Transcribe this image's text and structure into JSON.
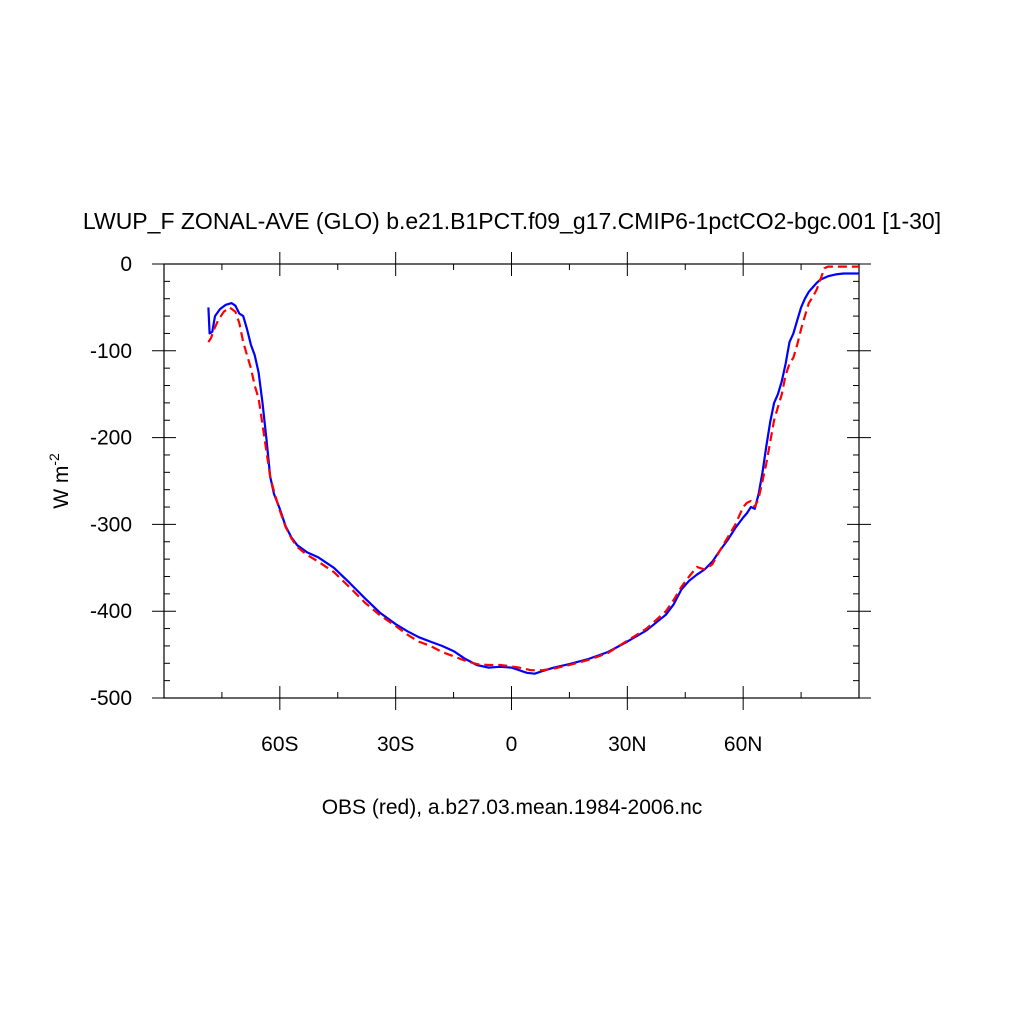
{
  "chart_data": {
    "type": "line",
    "title": "LWUP_F ZONAL-AVE (GLO) b.e21.B1PCT.f09_g17.CMIP6-1pctCO2-bgc.001 [1-30]",
    "xlabel": "OBS (red), a.b27.03.mean.1984-2006.nc",
    "ylabel": "W m",
    "ylabel_sup": "-2",
    "xlim": [
      -90,
      90
    ],
    "ylim": [
      -500,
      0
    ],
    "x_ticks": [
      {
        "value": -60,
        "label": "60S"
      },
      {
        "value": -30,
        "label": "30S"
      },
      {
        "value": 0,
        "label": "0"
      },
      {
        "value": 30,
        "label": "30N"
      },
      {
        "value": 60,
        "label": "60N"
      }
    ],
    "y_ticks": [
      {
        "value": 0,
        "label": "0"
      },
      {
        "value": -100,
        "label": "-100"
      },
      {
        "value": -200,
        "label": "-200"
      },
      {
        "value": -300,
        "label": "-300"
      },
      {
        "value": -400,
        "label": "-400"
      },
      {
        "value": -500,
        "label": "-500"
      }
    ],
    "grid": false,
    "series": [
      {
        "color": "#0000ff",
        "dash": "solid",
        "points": [
          [
            -78.5,
            -50
          ],
          [
            -78.2,
            -80
          ],
          [
            -77.5,
            -78
          ],
          [
            -76.8,
            -60
          ],
          [
            -75.5,
            -52
          ],
          [
            -74,
            -47
          ],
          [
            -72.5,
            -45
          ],
          [
            -71.5,
            -48
          ],
          [
            -70.5,
            -57
          ],
          [
            -69.5,
            -60
          ],
          [
            -68.5,
            -75
          ],
          [
            -67.5,
            -93
          ],
          [
            -66.5,
            -105
          ],
          [
            -65.5,
            -125
          ],
          [
            -64.5,
            -160
          ],
          [
            -63.5,
            -200
          ],
          [
            -62.5,
            -245
          ],
          [
            -61.5,
            -265
          ],
          [
            -60,
            -282
          ],
          [
            -58.5,
            -302
          ],
          [
            -57,
            -315
          ],
          [
            -55.5,
            -324
          ],
          [
            -53,
            -332
          ],
          [
            -50,
            -338
          ],
          [
            -46,
            -350
          ],
          [
            -42,
            -367
          ],
          [
            -38,
            -385
          ],
          [
            -34,
            -402
          ],
          [
            -30,
            -415
          ],
          [
            -27,
            -423
          ],
          [
            -24,
            -430
          ],
          [
            -21,
            -435
          ],
          [
            -18,
            -440
          ],
          [
            -15,
            -446
          ],
          [
            -12,
            -455
          ],
          [
            -9,
            -462
          ],
          [
            -6,
            -465
          ],
          [
            -3,
            -464
          ],
          [
            0,
            -465
          ],
          [
            2,
            -468
          ],
          [
            4,
            -471
          ],
          [
            6,
            -472
          ],
          [
            8,
            -469
          ],
          [
            11,
            -465
          ],
          [
            15,
            -461
          ],
          [
            20,
            -455
          ],
          [
            25,
            -447
          ],
          [
            30,
            -435
          ],
          [
            35,
            -422
          ],
          [
            40,
            -404
          ],
          [
            42,
            -392
          ],
          [
            44,
            -375
          ],
          [
            46,
            -365
          ],
          [
            48,
            -358
          ],
          [
            50,
            -352
          ],
          [
            52,
            -343
          ],
          [
            54,
            -330
          ],
          [
            56,
            -318
          ],
          [
            58,
            -304
          ],
          [
            60,
            -292
          ],
          [
            61,
            -287
          ],
          [
            62,
            -280
          ],
          [
            63,
            -282
          ],
          [
            64,
            -265
          ],
          [
            65,
            -240
          ],
          [
            66,
            -210
          ],
          [
            67,
            -182
          ],
          [
            68,
            -160
          ],
          [
            69,
            -150
          ],
          [
            70,
            -135
          ],
          [
            71,
            -115
          ],
          [
            72,
            -90
          ],
          [
            73,
            -80
          ],
          [
            74,
            -65
          ],
          [
            75,
            -50
          ],
          [
            76,
            -40
          ],
          [
            77,
            -32
          ],
          [
            78,
            -27
          ],
          [
            79,
            -22
          ],
          [
            80,
            -18
          ],
          [
            82,
            -14
          ],
          [
            84,
            -12
          ],
          [
            86,
            -11
          ],
          [
            90,
            -11
          ]
        ]
      },
      {
        "color": "#ff0000",
        "dash": "dashed",
        "points": [
          [
            -78.5,
            -90
          ],
          [
            -77.8,
            -85
          ],
          [
            -77,
            -75
          ],
          [
            -76,
            -65
          ],
          [
            -74.5,
            -55
          ],
          [
            -73,
            -50
          ],
          [
            -71.5,
            -55
          ],
          [
            -70.5,
            -68
          ],
          [
            -69.5,
            -90
          ],
          [
            -68.5,
            -105
          ],
          [
            -67.5,
            -120
          ],
          [
            -66.5,
            -140
          ],
          [
            -65.5,
            -155
          ],
          [
            -64.5,
            -185
          ],
          [
            -63.5,
            -215
          ],
          [
            -62.5,
            -245
          ],
          [
            -61.5,
            -262
          ],
          [
            -60,
            -284
          ],
          [
            -58.5,
            -303
          ],
          [
            -57,
            -316
          ],
          [
            -55.5,
            -326
          ],
          [
            -53,
            -335
          ],
          [
            -50,
            -343
          ],
          [
            -46,
            -355
          ],
          [
            -42,
            -372
          ],
          [
            -38,
            -390
          ],
          [
            -34,
            -405
          ],
          [
            -30,
            -417
          ],
          [
            -27,
            -427
          ],
          [
            -24,
            -435
          ],
          [
            -21,
            -440
          ],
          [
            -18,
            -447
          ],
          [
            -15,
            -452
          ],
          [
            -12,
            -457
          ],
          [
            -9,
            -461
          ],
          [
            -6,
            -462
          ],
          [
            -3,
            -462
          ],
          [
            -1,
            -463
          ],
          [
            2,
            -465
          ],
          [
            5,
            -468
          ],
          [
            8,
            -468
          ],
          [
            11,
            -466
          ],
          [
            15,
            -462
          ],
          [
            20,
            -456
          ],
          [
            25,
            -448
          ],
          [
            30,
            -434
          ],
          [
            35,
            -420
          ],
          [
            40,
            -400
          ],
          [
            42,
            -387
          ],
          [
            44,
            -372
          ],
          [
            46,
            -360
          ],
          [
            48,
            -349
          ],
          [
            50,
            -352
          ],
          [
            52,
            -346
          ],
          [
            54,
            -330
          ],
          [
            56,
            -315
          ],
          [
            58,
            -300
          ],
          [
            59,
            -290
          ],
          [
            60,
            -280
          ],
          [
            61,
            -275
          ],
          [
            62,
            -273
          ],
          [
            63,
            -280
          ],
          [
            64,
            -270
          ],
          [
            65,
            -250
          ],
          [
            66,
            -230
          ],
          [
            67,
            -205
          ],
          [
            68,
            -180
          ],
          [
            69,
            -165
          ],
          [
            70,
            -150
          ],
          [
            71,
            -128
          ],
          [
            72,
            -115
          ],
          [
            73,
            -108
          ],
          [
            74,
            -93
          ],
          [
            75,
            -75
          ],
          [
            76,
            -60
          ],
          [
            77,
            -45
          ],
          [
            78,
            -38
          ],
          [
            79,
            -30
          ],
          [
            80,
            -18
          ],
          [
            81,
            -5
          ],
          [
            82,
            -3
          ],
          [
            90,
            -3
          ]
        ]
      }
    ]
  }
}
